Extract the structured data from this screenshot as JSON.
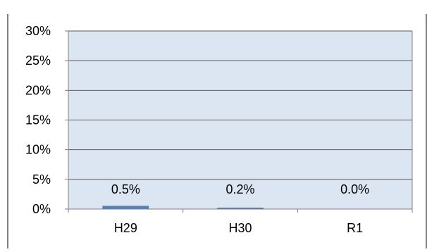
{
  "chart_data": {
    "type": "bar",
    "title": "",
    "xlabel": "",
    "ylabel": "",
    "categories": [
      "H29",
      "H30",
      "R1"
    ],
    "series": [
      {
        "values": [
          0.5,
          0.2,
          0.0
        ]
      }
    ],
    "data_labels": [
      "0.5%",
      "0.2%",
      "0.0%"
    ],
    "y_ticks": [
      {
        "value": 0,
        "label": "0%"
      },
      {
        "value": 5,
        "label": "5%"
      },
      {
        "value": 10,
        "label": "10%"
      },
      {
        "value": 15,
        "label": "15%"
      },
      {
        "value": 20,
        "label": "20%"
      },
      {
        "value": 25,
        "label": "25%"
      },
      {
        "value": 30,
        "label": "30%"
      }
    ],
    "ylim": [
      0,
      30
    ],
    "grid": true,
    "legend": "none",
    "colors": {
      "plot_background": "#dce6f2",
      "bar": "#4f81bd",
      "bar_edge": "#3a6aa6",
      "grid": "#5a5a5a",
      "axis": "#7f7f7f",
      "text": "#000000",
      "frame": "#000000"
    }
  }
}
